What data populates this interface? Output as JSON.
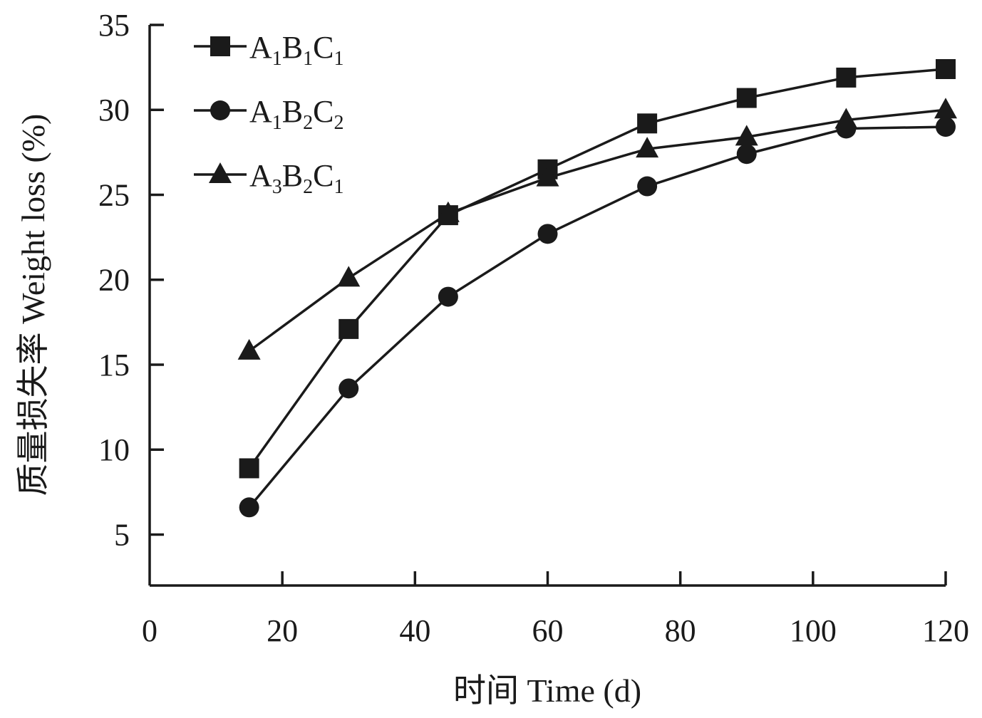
{
  "chart_data": {
    "type": "line",
    "title": "",
    "xlabel": "时间 Time (d)",
    "ylabel": "质量损失率 Weight loss (%)",
    "xlim": [
      0,
      120
    ],
    "ylim": [
      2,
      35
    ],
    "x_ticks": [
      0,
      20,
      40,
      60,
      80,
      100,
      120
    ],
    "y_ticks": [
      5,
      10,
      15,
      20,
      25,
      30,
      35
    ],
    "grid": false,
    "legend_position": "top-left",
    "x": [
      15,
      30,
      45,
      60,
      75,
      90,
      105,
      120
    ],
    "series": [
      {
        "name": "A1B1C1",
        "name_parts": [
          {
            "base": "A",
            "sub": "1"
          },
          {
            "base": "B",
            "sub": "1"
          },
          {
            "base": "C",
            "sub": "1"
          }
        ],
        "marker": "square",
        "color": "#1a1a1a",
        "values": [
          8.9,
          17.1,
          23.8,
          26.5,
          29.2,
          30.7,
          31.9,
          32.4
        ]
      },
      {
        "name": "A1B2C2",
        "name_parts": [
          {
            "base": "A",
            "sub": "1"
          },
          {
            "base": "B",
            "sub": "2"
          },
          {
            "base": "C",
            "sub": "2"
          }
        ],
        "marker": "circle",
        "color": "#1a1a1a",
        "values": [
          6.6,
          13.6,
          19.0,
          22.7,
          25.5,
          27.4,
          28.9,
          29.0
        ]
      },
      {
        "name": "A3B2C1",
        "name_parts": [
          {
            "base": "A",
            "sub": "3"
          },
          {
            "base": "B",
            "sub": "2"
          },
          {
            "base": "C",
            "sub": "1"
          }
        ],
        "marker": "triangle",
        "color": "#1a1a1a",
        "values": [
          15.8,
          20.1,
          23.9,
          26.0,
          27.7,
          28.4,
          29.4,
          30.0
        ]
      }
    ]
  }
}
